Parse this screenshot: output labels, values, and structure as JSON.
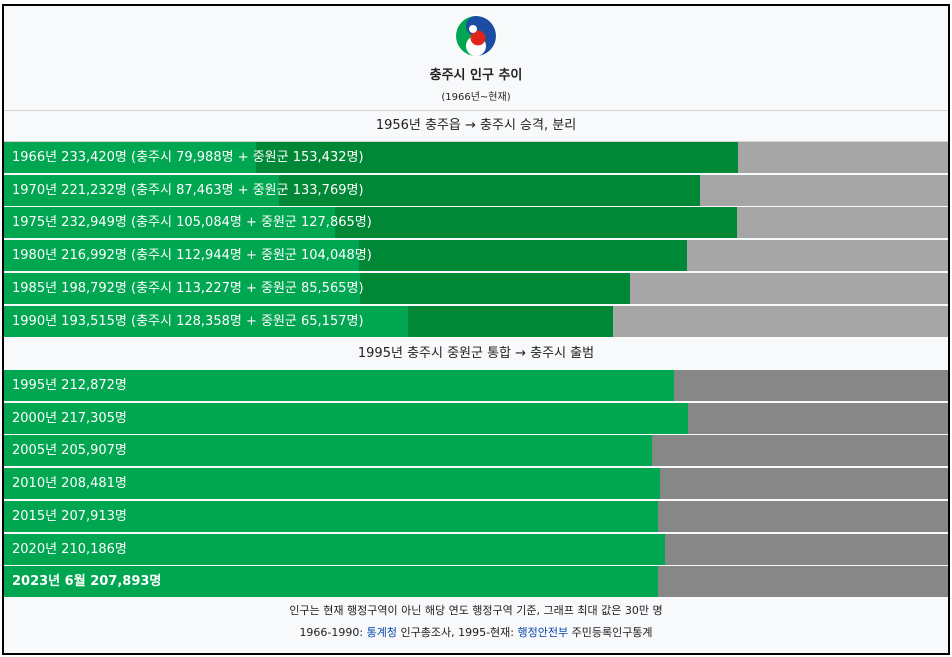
{
  "title": "충주시 인구 추이",
  "subtitle": "(1966년~현재)",
  "sections": [
    "1956년 충주읍 → 충주시 승격, 분리",
    "1995년 충주시 중원군 통합 → 충주시 출범"
  ],
  "colors": {
    "chungju": "#00a650",
    "jungwon": "#008837",
    "bg_split": "#a6a6a6",
    "bg_merged": "#878787"
  },
  "chart_data": {
    "type": "bar",
    "xlim": [
      0,
      300000
    ],
    "unit": "명",
    "split_rows": [
      {
        "label": "1966년 233,420명 (충주시 79,988명 + 중원군 153,432명)",
        "year": 1966,
        "total": 233420,
        "chungju": 79988,
        "jungwon": 153432
      },
      {
        "label": "1970년 221,232명 (충주시 87,463명 + 중원군 133,769명)",
        "year": 1970,
        "total": 221232,
        "chungju": 87463,
        "jungwon": 133769
      },
      {
        "label": "1975년 232,949명 (충주시 105,084명 + 중원군 127,865명)",
        "year": 1975,
        "total": 232949,
        "chungju": 105084,
        "jungwon": 127865
      },
      {
        "label": "1980년 216,992명 (충주시 112,944명 + 중원군 104,048명)",
        "year": 1980,
        "total": 216992,
        "chungju": 112944,
        "jungwon": 104048
      },
      {
        "label": "1985년 198,792명 (충주시 113,227명 + 중원군 85,565명)",
        "year": 1985,
        "total": 198792,
        "chungju": 113227,
        "jungwon": 85565
      },
      {
        "label": "1990년 193,515명 (충주시 128,358명 + 중원군 65,157명)",
        "year": 1990,
        "total": 193515,
        "chungju": 128358,
        "jungwon": 65157
      }
    ],
    "merged_rows": [
      {
        "label": "1995년 212,872명",
        "year": 1995,
        "total": 212872
      },
      {
        "label": "2000년 217,305명",
        "year": 2000,
        "total": 217305
      },
      {
        "label": "2005년 205,907명",
        "year": 2005,
        "total": 205907
      },
      {
        "label": "2010년 208,481명",
        "year": 2010,
        "total": 208481
      },
      {
        "label": "2015년 207,913명",
        "year": 2015,
        "total": 207913
      },
      {
        "label": "2020년 210,186명",
        "year": 2020,
        "total": 210186
      },
      {
        "label": "2023년 6월 207,893명",
        "year": 2023,
        "total": 207893,
        "bold": true
      }
    ]
  },
  "footer": {
    "note": "인구는 현재 행정구역이 아닌 해당 연도 행정구역 기준, 그래프 최대 값은 30만 명",
    "source_prefix": "1966-1990: ",
    "source_link1": "통계청",
    "source_mid": " 인구총조사, 1995-현재: ",
    "source_link2": "행정안전부",
    "source_suffix": " 주민등록인구통계"
  }
}
